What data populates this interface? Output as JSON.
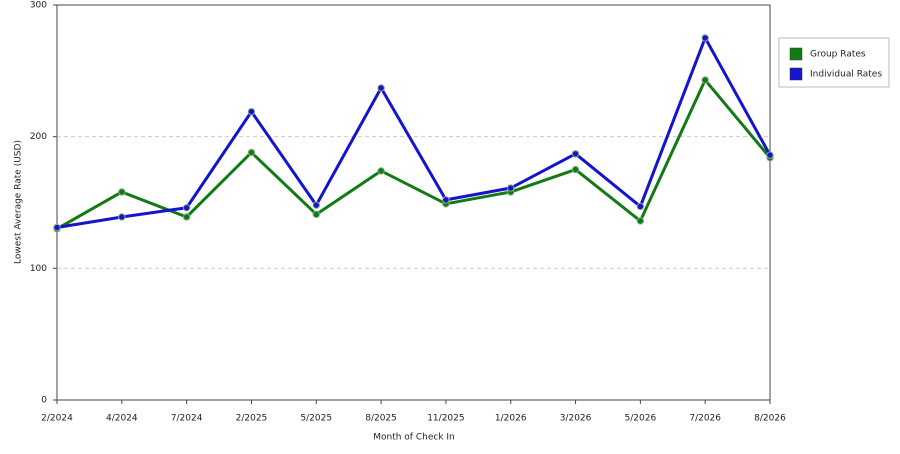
{
  "chart_data": {
    "type": "line",
    "x_label": "Month of Check In",
    "y_label": "Lowest Average Rate (USD)",
    "categories": [
      "2/2024",
      "4/2024",
      "7/2024",
      "2/2025",
      "5/2025",
      "8/2025",
      "11/2025",
      "1/2026",
      "3/2026",
      "5/2026",
      "7/2026",
      "8/2026"
    ],
    "series": [
      {
        "name": "Group Rates",
        "color": "#127a12",
        "values": [
          130,
          158,
          139,
          188,
          141,
          174,
          149,
          158,
          175,
          136,
          243,
          184
        ]
      },
      {
        "name": "Individual Rates",
        "color": "#1414cc",
        "values": [
          131,
          139,
          146,
          219,
          148,
          237,
          152,
          161,
          187,
          147,
          275,
          186
        ]
      }
    ],
    "ylim": [
      0,
      300
    ],
    "yticks": [
      0,
      100,
      200,
      300
    ],
    "grid": true,
    "legend": "right"
  }
}
